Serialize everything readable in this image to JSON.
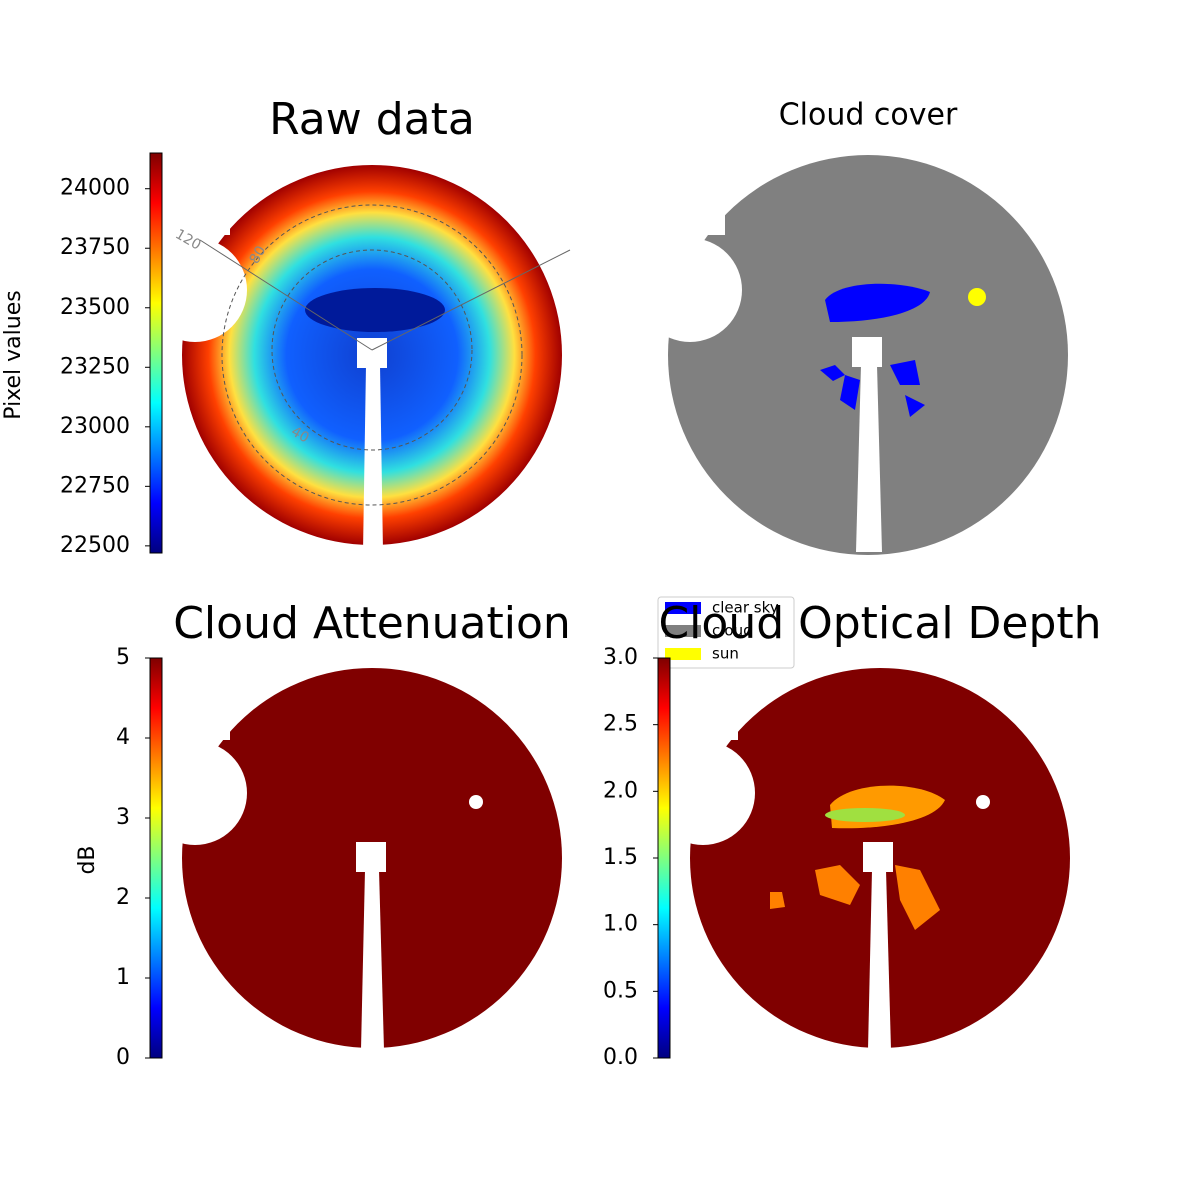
{
  "chart_data": [
    {
      "type": "image",
      "title": "Raw data",
      "colormap": "jet",
      "colorbar_label": "Pixel values",
      "ylim": [
        22470,
        24150
      ],
      "yticks": [
        22500,
        22750,
        23000,
        23250,
        23500,
        23750,
        24000
      ],
      "polar_labels": [
        "120",
        "80",
        "40"
      ]
    },
    {
      "type": "image",
      "title": "Cloud cover",
      "series": [
        {
          "name": "clear sky",
          "color": "#0000ff"
        },
        {
          "name": "cloud",
          "color": "#808080"
        },
        {
          "name": "sun",
          "color": "#ffff00"
        }
      ]
    },
    {
      "type": "image",
      "title": "Cloud Attenuation",
      "colormap": "jet",
      "colorbar_label": "dB",
      "ylim": [
        0,
        5
      ],
      "yticks": [
        0,
        1,
        2,
        3,
        4,
        5
      ]
    },
    {
      "type": "image",
      "title": "Cloud Optical Depth",
      "colormap": "jet",
      "ylim": [
        0,
        3
      ],
      "yticks": [
        {
          "value": 0,
          "label": "0.0"
        },
        {
          "value": 0.5,
          "label": "0.5"
        },
        {
          "value": 1,
          "label": "1.0"
        },
        {
          "value": 1.5,
          "label": "1.5"
        },
        {
          "value": 2,
          "label": "2.0"
        },
        {
          "value": 2.5,
          "label": "2.5"
        },
        {
          "value": 3,
          "label": "3.0"
        }
      ]
    }
  ]
}
